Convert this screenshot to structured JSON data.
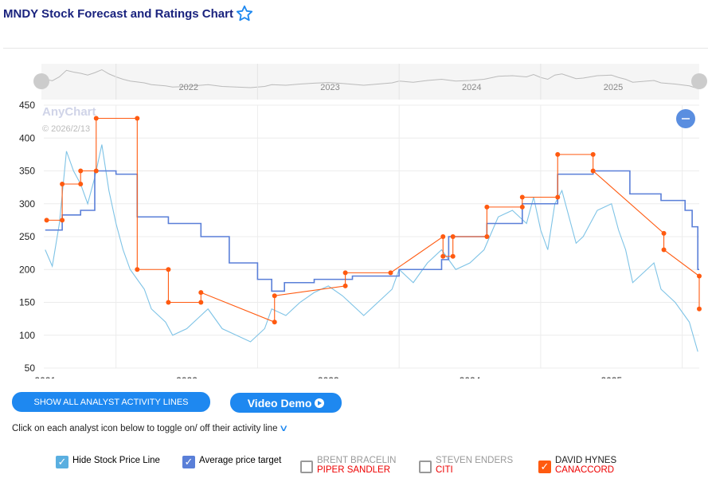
{
  "title": "MNDY Stock Forecast and Ratings Chart",
  "watermark": "AnyChart",
  "copyright": "© 2026/2/13",
  "buttons": {
    "show_all": "SHOW ALL ANALYST ACTIVITY LINES",
    "video": "Video Demo"
  },
  "hint": "Click on each analyst icon below to toggle on/ off their activity line",
  "legend": [
    {
      "label": "Hide Stock Price Line",
      "checked": true,
      "color": "#5aafe0"
    },
    {
      "label": "Average price target",
      "checked": true,
      "color": "#5a7fd8"
    },
    {
      "name": "BRENT BRACELIN",
      "firm": "PIPER SANDLER",
      "checked": false
    },
    {
      "name": "STEVEN ENDERS",
      "firm": "CITI",
      "checked": false
    },
    {
      "name": "DAVID HYNES",
      "firm": "CANACCORD",
      "checked": true,
      "color": "#ff5a10"
    }
  ],
  "chart_data": {
    "type": "line",
    "title": "MNDY Stock Forecast and Ratings Chart",
    "ylim": [
      50,
      450
    ],
    "yticks": [
      50,
      100,
      150,
      200,
      250,
      300,
      350,
      400,
      450
    ],
    "xlim": [
      2020.99,
      2025.62
    ],
    "xticks": [
      "2021",
      "2022",
      "2023",
      "2024",
      "2025"
    ],
    "navigator_labels": [
      "2022",
      "2023",
      "2024",
      "2025"
    ],
    "series": [
      {
        "name": "Stock Price",
        "color": "#7ec3e6",
        "points": [
          [
            2021.0,
            230
          ],
          [
            2021.05,
            205
          ],
          [
            2021.1,
            270
          ],
          [
            2021.15,
            380
          ],
          [
            2021.2,
            350
          ],
          [
            2021.25,
            330
          ],
          [
            2021.3,
            300
          ],
          [
            2021.35,
            340
          ],
          [
            2021.4,
            390
          ],
          [
            2021.45,
            320
          ],
          [
            2021.5,
            270
          ],
          [
            2021.55,
            230
          ],
          [
            2021.6,
            200
          ],
          [
            2021.7,
            170
          ],
          [
            2021.75,
            140
          ],
          [
            2021.85,
            120
          ],
          [
            2021.9,
            100
          ],
          [
            2022.0,
            110
          ],
          [
            2022.1,
            130
          ],
          [
            2022.15,
            140
          ],
          [
            2022.25,
            110
          ],
          [
            2022.35,
            100
          ],
          [
            2022.45,
            90
          ],
          [
            2022.55,
            110
          ],
          [
            2022.6,
            140
          ],
          [
            2022.7,
            130
          ],
          [
            2022.8,
            150
          ],
          [
            2022.9,
            165
          ],
          [
            2023.0,
            175
          ],
          [
            2023.1,
            160
          ],
          [
            2023.2,
            140
          ],
          [
            2023.25,
            130
          ],
          [
            2023.35,
            150
          ],
          [
            2023.45,
            170
          ],
          [
            2023.5,
            200
          ],
          [
            2023.6,
            180
          ],
          [
            2023.7,
            210
          ],
          [
            2023.8,
            230
          ],
          [
            2023.9,
            200
          ],
          [
            2024.0,
            210
          ],
          [
            2024.1,
            230
          ],
          [
            2024.2,
            280
          ],
          [
            2024.3,
            290
          ],
          [
            2024.4,
            270
          ],
          [
            2024.45,
            310
          ],
          [
            2024.5,
            260
          ],
          [
            2024.55,
            230
          ],
          [
            2024.6,
            300
          ],
          [
            2024.65,
            320
          ],
          [
            2024.7,
            280
          ],
          [
            2024.75,
            240
          ],
          [
            2024.8,
            250
          ],
          [
            2024.9,
            290
          ],
          [
            2025.0,
            300
          ],
          [
            2025.05,
            260
          ],
          [
            2025.1,
            230
          ],
          [
            2025.15,
            180
          ],
          [
            2025.25,
            200
          ],
          [
            2025.3,
            210
          ],
          [
            2025.35,
            170
          ],
          [
            2025.45,
            150
          ],
          [
            2025.55,
            120
          ],
          [
            2025.61,
            75
          ]
        ]
      },
      {
        "name": "Average price target",
        "color": "#5a7fd8",
        "step": true,
        "points": [
          [
            2021.0,
            260
          ],
          [
            2021.12,
            283
          ],
          [
            2021.25,
            290
          ],
          [
            2021.35,
            350
          ],
          [
            2021.5,
            345
          ],
          [
            2021.65,
            280
          ],
          [
            2021.87,
            270
          ],
          [
            2022.1,
            250
          ],
          [
            2022.3,
            210
          ],
          [
            2022.5,
            185
          ],
          [
            2022.6,
            167
          ],
          [
            2022.69,
            180
          ],
          [
            2022.9,
            185
          ],
          [
            2023.17,
            190
          ],
          [
            2023.5,
            200
          ],
          [
            2023.8,
            215
          ],
          [
            2023.85,
            250
          ],
          [
            2024.12,
            270
          ],
          [
            2024.37,
            300
          ],
          [
            2024.62,
            305
          ],
          [
            2024.62,
            345
          ],
          [
            2024.87,
            350
          ],
          [
            2025.13,
            315
          ],
          [
            2025.35,
            305
          ],
          [
            2025.52,
            290
          ],
          [
            2025.57,
            265
          ],
          [
            2025.61,
            200
          ]
        ]
      },
      {
        "name": "DAVID HYNES (CANACCORD)",
        "color": "#ff5a10",
        "markers": true,
        "points": [
          [
            2021.01,
            275
          ],
          [
            2021.12,
            275
          ],
          [
            2021.12,
            330
          ],
          [
            2021.25,
            330
          ],
          [
            2021.25,
            350
          ],
          [
            2021.36,
            350
          ],
          [
            2021.36,
            430
          ],
          [
            2021.65,
            430
          ],
          [
            2021.65,
            200
          ],
          [
            2021.87,
            200
          ],
          [
            2021.87,
            150
          ],
          [
            2022.1,
            150
          ],
          [
            2022.1,
            165
          ],
          [
            2022.62,
            120
          ],
          [
            2022.62,
            160
          ],
          [
            2023.12,
            175
          ],
          [
            2023.12,
            195
          ],
          [
            2023.44,
            195
          ],
          [
            2023.81,
            250
          ],
          [
            2023.81,
            220
          ],
          [
            2023.88,
            220
          ],
          [
            2023.88,
            250
          ],
          [
            2024.12,
            250
          ],
          [
            2024.12,
            295
          ],
          [
            2024.37,
            295
          ],
          [
            2024.37,
            310
          ],
          [
            2024.62,
            310
          ],
          [
            2024.62,
            375
          ],
          [
            2024.87,
            375
          ],
          [
            2024.87,
            350
          ],
          [
            2025.37,
            255
          ],
          [
            2025.37,
            230
          ],
          [
            2025.62,
            190
          ],
          [
            2025.62,
            140
          ]
        ]
      }
    ]
  }
}
